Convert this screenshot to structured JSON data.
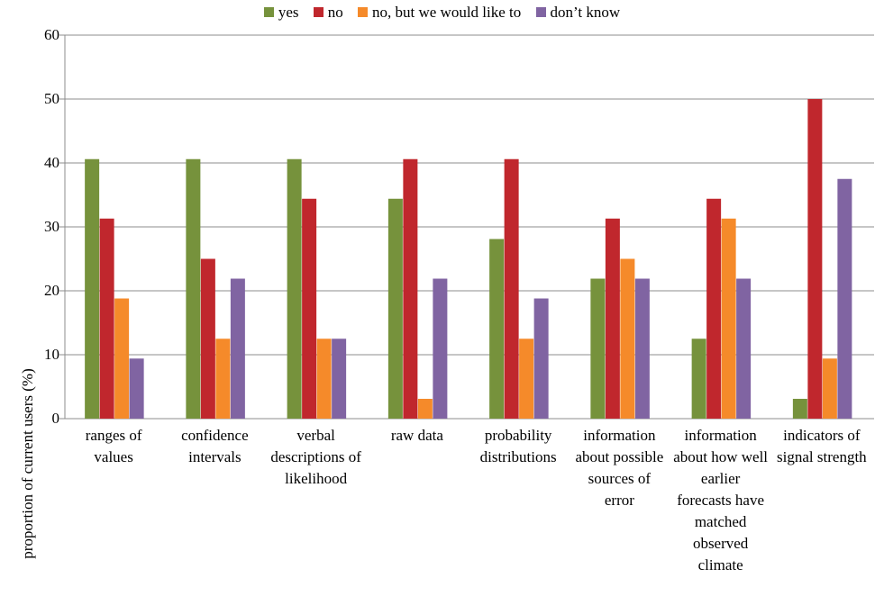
{
  "chart_data": {
    "type": "bar",
    "title": "",
    "ylabel": "proportion of current users (%)",
    "xlabel": "",
    "ylim": [
      0,
      60
    ],
    "yticks": [
      0,
      10,
      20,
      30,
      40,
      50,
      60
    ],
    "grid": true,
    "legend_position": "top-center",
    "categories": [
      "ranges of values",
      "confidence intervals",
      "verbal descriptions of likelihood",
      "raw data",
      "probability distributions",
      "information about possible sources of error",
      "information about how well earlier forecasts have matched observed climate",
      "indicators of signal strength"
    ],
    "series": [
      {
        "name": "yes",
        "color": "#76923c",
        "values": [
          40.6,
          40.6,
          40.6,
          34.4,
          28.1,
          21.9,
          12.5,
          3.1
        ]
      },
      {
        "name": "no",
        "color": "#c0272d",
        "values": [
          31.3,
          25.0,
          34.4,
          40.6,
          40.6,
          31.3,
          34.4,
          50.0
        ]
      },
      {
        "name": "no, but we would like to",
        "color": "#f58a2a",
        "values": [
          18.8,
          12.5,
          12.5,
          3.1,
          12.5,
          25.0,
          31.3,
          9.4
        ]
      },
      {
        "name": "don’t know",
        "color": "#8064a2",
        "values": [
          9.4,
          21.9,
          12.5,
          21.9,
          18.8,
          21.9,
          21.9,
          37.5
        ]
      }
    ]
  }
}
